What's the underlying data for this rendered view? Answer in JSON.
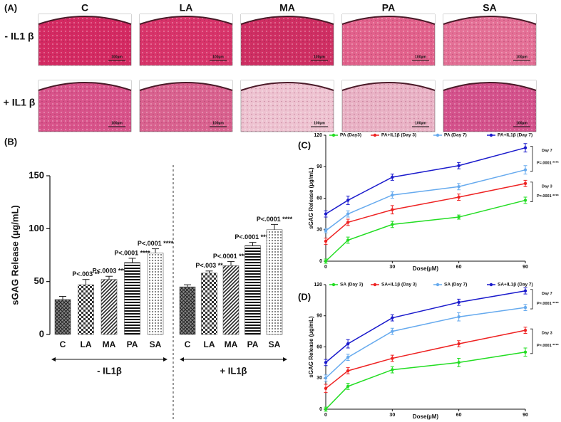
{
  "panel_labels": {
    "a": "(A)",
    "b": "(B)",
    "c": "(C)",
    "d": "(D)"
  },
  "histology": {
    "columns": [
      "C",
      "LA",
      "MA",
      "PA",
      "SA"
    ],
    "rows": [
      "- IL1 β",
      "+ IL1 β"
    ],
    "scale_bar": "100µm"
  },
  "chart_data": [
    {
      "type": "bar",
      "y_label": "sGAG Release (µg/mL)",
      "ylim": [
        0,
        150
      ],
      "yticks": [
        0,
        50,
        100,
        150
      ],
      "groups": [
        {
          "label": "- IL1β",
          "categories": [
            "C",
            "LA",
            "MA",
            "PA",
            "SA"
          ],
          "values": [
            33,
            47,
            52,
            68,
            77
          ],
          "errors": [
            3,
            5,
            3,
            4,
            4
          ],
          "significance": [
            null,
            "P<.003 **",
            "P<.0003 ***",
            "P<.0001 ****",
            "P<.0001 ****"
          ]
        },
        {
          "label": "+ IL1β",
          "categories": [
            "C",
            "LA",
            "MA",
            "PA",
            "SA"
          ],
          "values": [
            45,
            58,
            65,
            84,
            99
          ],
          "errors": [
            2,
            2,
            4,
            3,
            5
          ],
          "significance": [
            null,
            "P<.003 **",
            "P<.0001 ****",
            "P<.0001 ****",
            "P<.0001 ****"
          ]
        }
      ]
    },
    {
      "type": "line",
      "x_label": "Dose(µM)",
      "y_label": "sGAG Release (µg/mL)",
      "x": [
        0,
        10,
        30,
        60,
        90
      ],
      "xlim": [
        0,
        90
      ],
      "xticks": [
        0,
        30,
        60,
        90
      ],
      "ylim": [
        0,
        120
      ],
      "yticks": [
        0,
        30,
        60,
        90,
        120
      ],
      "series": [
        {
          "name": "PA (Day3)",
          "color": "#22dd22",
          "values": [
            0,
            20,
            35,
            42,
            58
          ],
          "errors": [
            2,
            3,
            3,
            2,
            3
          ]
        },
        {
          "name": "PA+IL1β (Day 3)",
          "color": "#ee2222",
          "values": [
            19,
            37,
            49,
            61,
            74
          ],
          "errors": [
            3,
            3,
            4,
            3,
            3
          ]
        },
        {
          "name": "PA (Day 7)",
          "color": "#66aaee",
          "values": [
            29,
            45,
            63,
            71,
            87
          ],
          "errors": [
            2,
            3,
            3,
            3,
            4
          ]
        },
        {
          "name": "PA+IL1β (Day 7)",
          "color": "#1a1acc",
          "values": [
            45,
            58,
            80,
            91,
            108
          ],
          "errors": [
            3,
            4,
            3,
            3,
            4
          ]
        }
      ],
      "brackets": [
        {
          "label": "Day 7",
          "text": "P=.0001 ****"
        },
        {
          "label": "Day 3",
          "text": "P=.0001 ****"
        }
      ]
    },
    {
      "type": "line",
      "x_label": "Dose(µM)",
      "y_label": "sGAG Release (µg/mL)",
      "x": [
        0,
        10,
        30,
        60,
        90
      ],
      "xlim": [
        0,
        90
      ],
      "xticks": [
        0,
        30,
        60,
        90
      ],
      "ylim": [
        0,
        120
      ],
      "yticks": [
        0,
        30,
        60,
        90,
        120
      ],
      "series": [
        {
          "name": "SA (Day 3)",
          "color": "#22dd22",
          "values": [
            0,
            22,
            38,
            45,
            55
          ],
          "errors": [
            2,
            3,
            3,
            4,
            4
          ]
        },
        {
          "name": "SA+IL1β (Day 3)",
          "color": "#ee2222",
          "values": [
            20,
            37,
            49,
            63,
            76
          ],
          "errors": [
            4,
            3,
            3,
            3,
            3
          ]
        },
        {
          "name": "SA (Day 7)",
          "color": "#66aaee",
          "values": [
            30,
            50,
            75,
            89,
            98
          ],
          "errors": [
            3,
            3,
            3,
            4,
            3
          ]
        },
        {
          "name": "SA+IL1β (Day 7)",
          "color": "#1a1acc",
          "values": [
            45,
            63,
            88,
            103,
            114
          ],
          "errors": [
            3,
            4,
            3,
            3,
            3
          ]
        }
      ],
      "brackets": [
        {
          "label": "Day 7",
          "text": "P=.0001 ****"
        },
        {
          "label": "Day 3",
          "text": "P=.0001 ****"
        }
      ]
    }
  ]
}
